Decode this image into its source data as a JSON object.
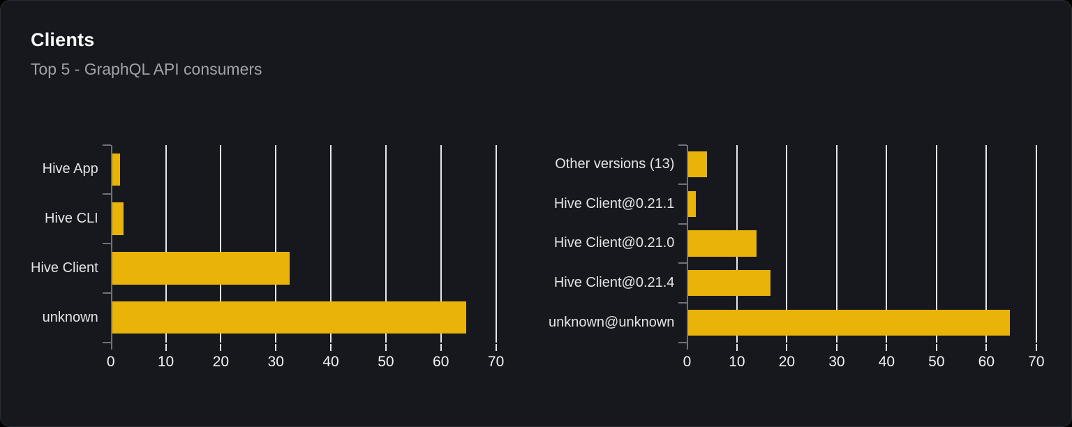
{
  "card": {
    "title": "Clients",
    "subtitle": "Top 5 - GraphQL API consumers"
  },
  "theme": {
    "page_bg": "#000000",
    "card_bg": "#16181d",
    "card_border": "#2b2e35",
    "title_color": "#fafafa",
    "subtitle_color": "#a1a1aa",
    "label_color": "#e4e4e7",
    "tick_label_color": "#f4f4f5",
    "axis_color": "#71717a",
    "gridline_color": "#e5e7eb",
    "bar_color": "#eab308"
  },
  "chart_data": [
    {
      "type": "bar",
      "orientation": "horizontal",
      "name": "clients-by-name",
      "title": "",
      "categories": [
        "Hive App",
        "Hive CLI",
        "Hive Client",
        "unknown"
      ],
      "values": [
        1.4,
        2.1,
        32.2,
        64.4
      ],
      "xticks": [
        0,
        10,
        20,
        30,
        40,
        50,
        60,
        70
      ],
      "xlim": [
        0,
        75
      ],
      "xlabel": "",
      "ylabel": "",
      "grid": true,
      "legend": false,
      "bar_color": "#eab308"
    },
    {
      "type": "bar",
      "orientation": "horizontal",
      "name": "clients-by-version",
      "title": "",
      "categories": [
        "Other versions (13)",
        "Hive Client@0.21.1",
        "Hive Client@0.21.0",
        "Hive Client@0.21.4",
        "unknown@unknown"
      ],
      "values": [
        3.7,
        1.5,
        13.7,
        16.4,
        64.4
      ],
      "xticks": [
        0,
        10,
        20,
        30,
        40,
        50,
        60,
        70
      ],
      "xlim": [
        0,
        71
      ],
      "xlabel": "",
      "ylabel": "",
      "grid": true,
      "legend": false,
      "bar_color": "#eab308"
    }
  ]
}
